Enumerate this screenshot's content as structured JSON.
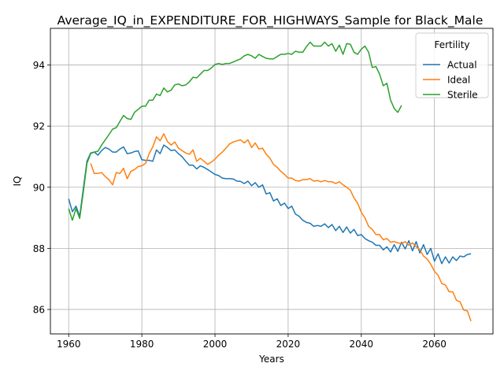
{
  "chart_data": {
    "type": "line",
    "title": "Average_IQ_in_EXPENDITURE_FOR_HIGHWAYS_Sample for Black_Male",
    "xlabel": "Years",
    "ylabel": "IQ",
    "xlim": [
      1955,
      2076
    ],
    "ylim": [
      85.2,
      95.2
    ],
    "xticks": [
      1960,
      1980,
      2000,
      2020,
      2040,
      2060
    ],
    "yticks": [
      86,
      88,
      90,
      92,
      94
    ],
    "grid": true,
    "legend": {
      "title": "Fertility",
      "placement": "top-right"
    },
    "series": [
      {
        "name": "Actual",
        "color": "#1f77b4",
        "x": [
          1960,
          1961,
          1962,
          1963,
          1964,
          1965,
          1966,
          1967,
          1968,
          1969,
          1970,
          1971,
          1972,
          1973,
          1974,
          1975,
          1976,
          1977,
          1978,
          1979,
          1980,
          1981,
          1982,
          1983,
          1984,
          1985,
          1986,
          1987,
          1988,
          1989,
          1990,
          1991,
          1992,
          1993,
          1994,
          1995,
          1996,
          1997,
          1998,
          1999,
          2000,
          2001,
          2002,
          2003,
          2004,
          2005,
          2006,
          2007,
          2008,
          2009,
          2010,
          2011,
          2012,
          2013,
          2014,
          2015,
          2016,
          2017,
          2018,
          2019,
          2020,
          2021,
          2022,
          2023,
          2024,
          2025,
          2026,
          2027,
          2028,
          2029,
          2030,
          2031,
          2032,
          2033,
          2034,
          2035,
          2036,
          2037,
          2038,
          2039,
          2040,
          2041,
          2042,
          2043,
          2044,
          2045,
          2046,
          2047,
          2048,
          2049,
          2050,
          2051,
          2052,
          2053,
          2054,
          2055,
          2056,
          2057,
          2058,
          2059,
          2060,
          2061,
          2062,
          2063,
          2064,
          2065,
          2066,
          2067,
          2068,
          2069,
          2070
        ],
        "values": [
          89.62,
          89.2,
          89.38,
          89.05,
          89.95,
          90.85,
          91.12,
          91.15,
          91.05,
          91.2,
          91.3,
          91.25,
          91.15,
          91.15,
          91.25,
          91.32,
          91.1,
          91.12,
          91.17,
          91.19,
          90.9,
          90.88,
          90.88,
          90.85,
          91.22,
          91.1,
          91.38,
          91.3,
          91.2,
          91.22,
          91.1,
          91.0,
          90.85,
          90.72,
          90.72,
          90.6,
          90.7,
          90.65,
          90.58,
          90.5,
          90.42,
          90.38,
          90.3,
          90.28,
          90.28,
          90.27,
          90.2,
          90.19,
          90.12,
          90.2,
          90.05,
          90.15,
          90.0,
          90.08,
          89.78,
          89.82,
          89.55,
          89.62,
          89.4,
          89.48,
          89.3,
          89.38,
          89.12,
          89.05,
          88.92,
          88.85,
          88.82,
          88.72,
          88.75,
          88.72,
          88.8,
          88.68,
          88.78,
          88.58,
          88.72,
          88.52,
          88.7,
          88.5,
          88.62,
          88.42,
          88.45,
          88.32,
          88.25,
          88.2,
          88.1,
          88.1,
          87.95,
          88.05,
          87.88,
          88.12,
          87.9,
          88.2,
          87.98,
          88.25,
          87.92,
          88.22,
          87.85,
          88.12,
          87.8,
          88.0,
          87.58,
          87.82,
          87.5,
          87.72,
          87.52,
          87.72,
          87.6,
          87.75,
          87.72,
          87.8,
          87.82
        ]
      },
      {
        "name": "Ideal",
        "color": "#ff7f0e",
        "x": [
          1966,
          1967,
          1968,
          1969,
          1970,
          1971,
          1972,
          1973,
          1974,
          1975,
          1976,
          1977,
          1978,
          1979,
          1980,
          1981,
          1982,
          1983,
          1984,
          1985,
          1986,
          1987,
          1988,
          1989,
          1990,
          1991,
          1992,
          1993,
          1994,
          1995,
          1996,
          1997,
          1998,
          1999,
          2000,
          2001,
          2002,
          2003,
          2004,
          2005,
          2006,
          2007,
          2008,
          2009,
          2010,
          2011,
          2012,
          2013,
          2014,
          2015,
          2016,
          2017,
          2018,
          2019,
          2020,
          2021,
          2022,
          2023,
          2024,
          2025,
          2026,
          2027,
          2028,
          2029,
          2030,
          2031,
          2032,
          2033,
          2034,
          2035,
          2036,
          2037,
          2038,
          2039,
          2040,
          2041,
          2042,
          2043,
          2044,
          2045,
          2046,
          2047,
          2048,
          2049,
          2050,
          2051,
          2052,
          2053,
          2054,
          2055,
          2056,
          2057,
          2058,
          2059,
          2060,
          2061,
          2062,
          2063,
          2064,
          2065,
          2066,
          2067,
          2068,
          2069,
          2070
        ],
        "values": [
          90.78,
          90.45,
          90.45,
          90.48,
          90.35,
          90.25,
          90.08,
          90.48,
          90.45,
          90.62,
          90.28,
          90.52,
          90.58,
          90.68,
          90.7,
          90.78,
          91.1,
          91.32,
          91.65,
          91.52,
          91.75,
          91.5,
          91.38,
          91.48,
          91.28,
          91.2,
          91.12,
          91.08,
          91.22,
          90.85,
          90.95,
          90.85,
          90.75,
          90.82,
          90.92,
          91.05,
          91.15,
          91.28,
          91.42,
          91.48,
          91.52,
          91.55,
          91.45,
          91.55,
          91.3,
          91.45,
          91.25,
          91.28,
          91.08,
          90.95,
          90.75,
          90.65,
          90.52,
          90.42,
          90.3,
          90.3,
          90.22,
          90.2,
          90.25,
          90.25,
          90.28,
          90.2,
          90.22,
          90.18,
          90.22,
          90.18,
          90.18,
          90.12,
          90.18,
          90.08,
          90.0,
          89.9,
          89.65,
          89.48,
          89.18,
          89.0,
          88.72,
          88.62,
          88.45,
          88.45,
          88.28,
          88.32,
          88.2,
          88.22,
          88.18,
          88.15,
          88.22,
          88.1,
          88.18,
          88.05,
          87.95,
          87.75,
          87.65,
          87.48,
          87.25,
          87.12,
          86.85,
          86.8,
          86.58,
          86.58,
          86.3,
          86.25,
          85.98,
          85.95,
          85.62
        ]
      },
      {
        "name": "Sterile",
        "color": "#2ca02c",
        "x": [
          1960,
          1961,
          1962,
          1963,
          1964,
          1965,
          1966,
          1967,
          1968,
          1969,
          1970,
          1971,
          1972,
          1973,
          1974,
          1975,
          1976,
          1977,
          1978,
          1979,
          1980,
          1981,
          1982,
          1983,
          1984,
          1985,
          1986,
          1987,
          1988,
          1989,
          1990,
          1991,
          1992,
          1993,
          1994,
          1995,
          1996,
          1997,
          1998,
          1999,
          2000,
          2001,
          2002,
          2003,
          2004,
          2005,
          2006,
          2007,
          2008,
          2009,
          2010,
          2011,
          2012,
          2013,
          2014,
          2015,
          2016,
          2017,
          2018,
          2019,
          2020,
          2021,
          2022,
          2023,
          2024,
          2025,
          2026,
          2027,
          2028,
          2029,
          2030,
          2031,
          2032,
          2033,
          2034,
          2035,
          2036,
          2037,
          2038,
          2039,
          2040,
          2041,
          2042,
          2043,
          2044,
          2045,
          2046,
          2047,
          2048,
          2049,
          2050,
          2051
        ],
        "values": [
          89.3,
          88.92,
          89.3,
          88.98,
          89.85,
          90.78,
          91.1,
          91.15,
          91.18,
          91.38,
          91.55,
          91.72,
          91.9,
          91.95,
          92.15,
          92.35,
          92.25,
          92.22,
          92.45,
          92.55,
          92.65,
          92.65,
          92.85,
          92.85,
          93.05,
          93.0,
          93.25,
          93.12,
          93.18,
          93.35,
          93.38,
          93.32,
          93.35,
          93.45,
          93.6,
          93.58,
          93.7,
          93.82,
          93.82,
          93.9,
          94.02,
          94.05,
          94.02,
          94.05,
          94.05,
          94.1,
          94.15,
          94.2,
          94.3,
          94.35,
          94.3,
          94.22,
          94.35,
          94.28,
          94.22,
          94.2,
          94.2,
          94.28,
          94.35,
          94.35,
          94.38,
          94.35,
          94.45,
          94.42,
          94.42,
          94.6,
          94.75,
          94.62,
          94.62,
          94.62,
          94.75,
          94.62,
          94.7,
          94.45,
          94.65,
          94.35,
          94.7,
          94.68,
          94.42,
          94.35,
          94.52,
          94.62,
          94.42,
          93.92,
          93.95,
          93.7,
          93.32,
          93.4,
          92.85,
          92.58,
          92.45,
          92.68
        ]
      }
    ]
  }
}
